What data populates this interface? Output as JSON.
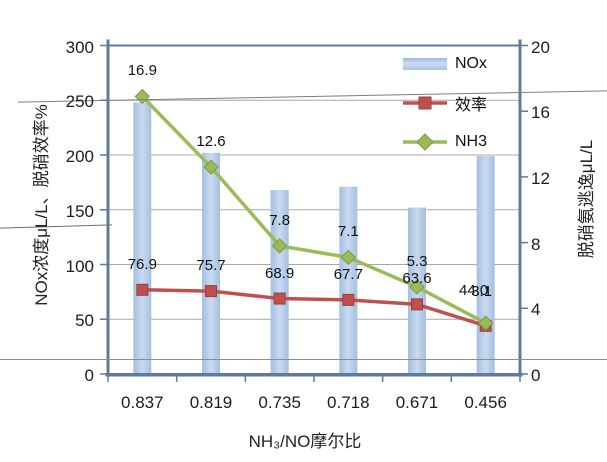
{
  "chart_data": {
    "type": "bar",
    "subtype": "combo-bar-line-dual-axis",
    "title": "",
    "categories": [
      "0.837",
      "0.819",
      "0.735",
      "0.718",
      "0.671",
      "0.456"
    ],
    "series": [
      {
        "name": "NOx",
        "plot": "bar",
        "axis": "left",
        "color": "#b7cce7",
        "values": [
          248,
          202,
          168,
          171,
          152,
          199
        ],
        "data_labels": false
      },
      {
        "name": "效率",
        "plot": "line",
        "marker": "square",
        "axis": "left",
        "color": "#c0504d",
        "values": [
          76.9,
          75.7,
          68.9,
          67.7,
          63.6,
          44.0
        ],
        "data_labels": true,
        "label_dx": [
          0,
          0,
          0,
          0,
          0,
          -12
        ],
        "label_dy": [
          0,
          0,
          0,
          0,
          0,
          -10
        ]
      },
      {
        "name": "NH3",
        "plot": "line",
        "marker": "diamond",
        "axis": "right",
        "color": "#9bbb59",
        "values": [
          16.9,
          12.6,
          7.8,
          7.1,
          5.3,
          3.1
        ],
        "data_labels": true,
        "label_dx": [
          0,
          0,
          0,
          0,
          0,
          -4
        ],
        "label_dy": [
          0,
          0,
          0,
          0,
          0,
          -6
        ]
      }
    ],
    "xlabel": "NH₃/NO摩尔比",
    "ylabel_left": "NOx浓度μL/L、脱硝效率%",
    "ylabel_right": "脱硝氨逃逸μL/L",
    "ylim_left": [
      0,
      300
    ],
    "ytick_step_left": 50,
    "ylim_right": [
      0,
      20
    ],
    "ytick_step_right": 4,
    "grid": true,
    "legend_position": "top-right-inside",
    "colors": {
      "axis": "#5f7a9c",
      "gridline": "#a8a8a8",
      "text": "#1c1c1c"
    }
  }
}
